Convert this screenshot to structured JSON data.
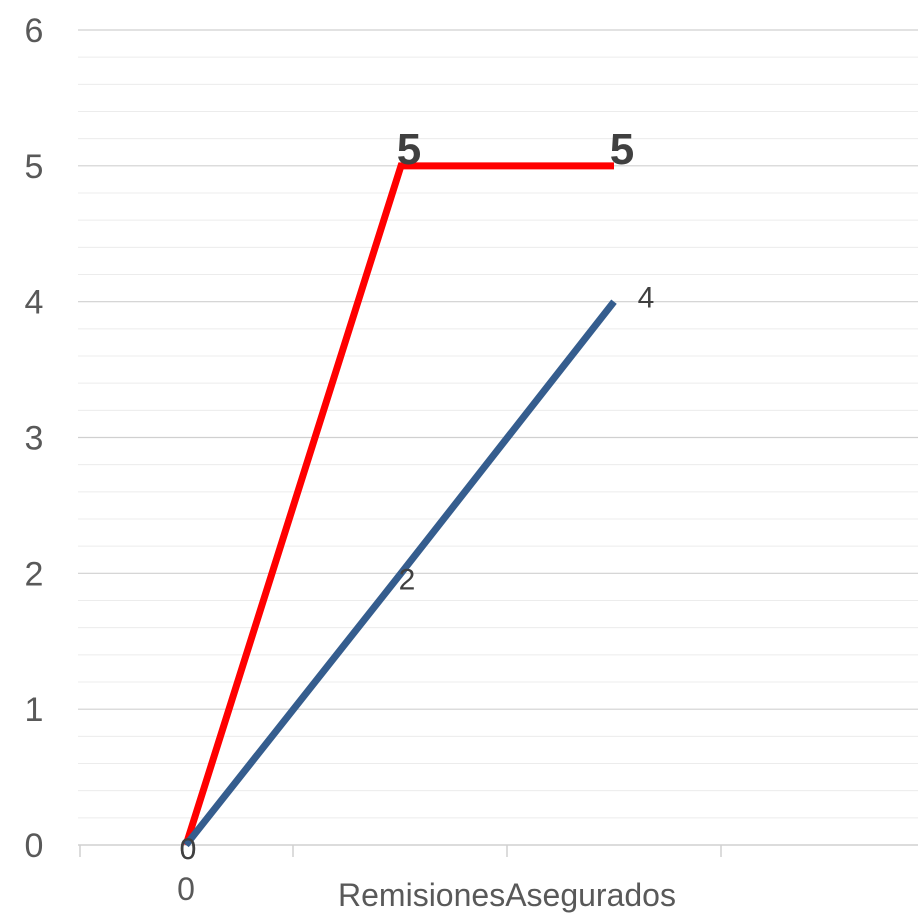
{
  "chart_data": {
    "type": "line",
    "title": "",
    "xlabel": "",
    "ylabel": "",
    "ylim": [
      0,
      6
    ],
    "y_ticks": [
      "0",
      "1",
      "2",
      "3",
      "4",
      "5",
      "6"
    ],
    "x_ticks": [
      "0",
      "Remisiones",
      "Asegurados"
    ],
    "grid": true,
    "legend": "none",
    "series": [
      {
        "color": "#ff0000",
        "x": [
          0,
          1,
          2
        ],
        "y": [
          0,
          5,
          5
        ],
        "labels": [
          "0",
          "5",
          "5"
        ],
        "bold_labels": true
      },
      {
        "color": "#355d8e",
        "x": [
          0,
          1,
          2
        ],
        "y": [
          0,
          2,
          4
        ],
        "labels": [
          "0",
          "2",
          "4"
        ],
        "bold_labels": false
      }
    ]
  }
}
